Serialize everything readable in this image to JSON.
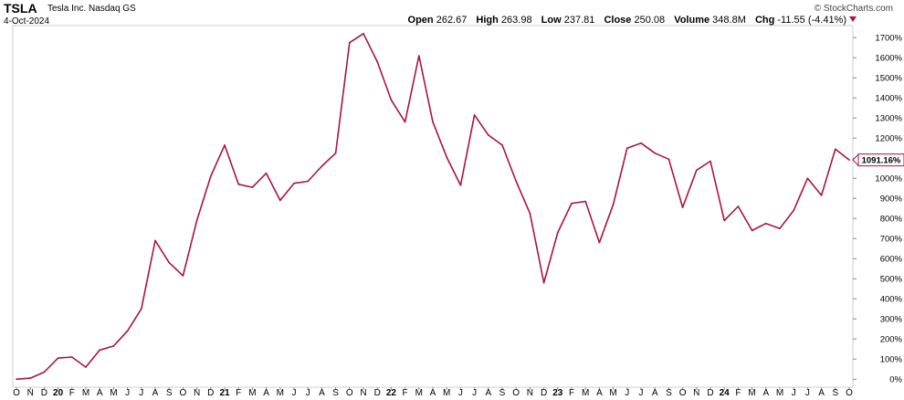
{
  "header": {
    "ticker": "TSLA",
    "company": "Tesla Inc.",
    "exchange": "Nasdaq GS",
    "date": "4-Oct-2024",
    "open_label": "Open",
    "open": "262.67",
    "high_label": "High",
    "high": "263.98",
    "low_label": "Low",
    "low": "237.81",
    "close_label": "Close",
    "close": "250.08",
    "volume_label": "Volume",
    "volume": "348.8M",
    "chg_label": "Chg",
    "chg": "-11.55 (-4.41%)",
    "copyright": "© StockCharts.com"
  },
  "colors": {
    "line": "#a8143f",
    "grid": "#e6e6e6",
    "chg_arrow": "#b0103a"
  },
  "chart_data": {
    "type": "line",
    "series": [
      {
        "values": [
          0,
          5,
          35,
          105,
          110,
          60,
          145,
          165,
          240,
          350,
          690,
          580,
          515,
          790,
          1010,
          1165,
          970,
          955,
          1025,
          890,
          975,
          985,
          1060,
          1125,
          1675,
          1720,
          1580,
          1390,
          1280,
          1610,
          1280,
          1105,
          965,
          1315,
          1215,
          1165,
          985,
          825,
          480,
          730,
          875,
          885,
          680,
          870,
          1150,
          1175,
          1125,
          1095,
          855,
          1040,
          1085,
          790,
          860,
          740,
          775,
          750,
          840,
          1000,
          915,
          1145,
          1091.16
        ]
      }
    ],
    "x_tick_labels": [
      "O",
      "N",
      "D",
      "20",
      "F",
      "M",
      "A",
      "M",
      "J",
      "J",
      "A",
      "S",
      "O",
      "N",
      "D",
      "21",
      "F",
      "M",
      "A",
      "M",
      "J",
      "J",
      "A",
      "S",
      "O",
      "N",
      "D",
      "22",
      "F",
      "M",
      "A",
      "M",
      "J",
      "J",
      "A",
      "S",
      "O",
      "N",
      "D",
      "23",
      "F",
      "M",
      "A",
      "M",
      "J",
      "J",
      "A",
      "S",
      "O",
      "N",
      "D",
      "24",
      "F",
      "M",
      "A",
      "M",
      "J",
      "J",
      "A",
      "S",
      "O"
    ],
    "y_tick_labels": [
      "0%",
      "100%",
      "200%",
      "300%",
      "400%",
      "500%",
      "600%",
      "700%",
      "800%",
      "900%",
      "1000%",
      "1100%",
      "1200%",
      "1300%",
      "1400%",
      "1500%",
      "1600%",
      "1700%"
    ],
    "y_ticks": [
      0,
      100,
      200,
      300,
      400,
      500,
      600,
      700,
      800,
      900,
      1000,
      1100,
      1200,
      1300,
      1400,
      1500,
      1600,
      1700
    ],
    "ylim": [
      -40,
      1760
    ],
    "last_value_label": "1091.16%",
    "last_value": 1091.16,
    "grid": false
  }
}
